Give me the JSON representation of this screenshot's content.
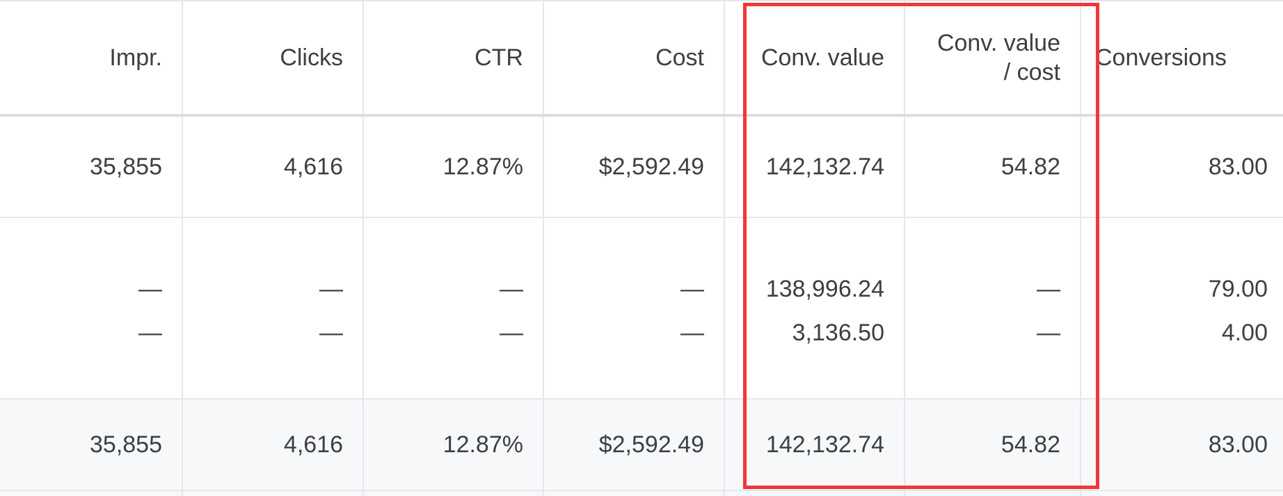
{
  "columns": [
    {
      "id": "impr",
      "label": "Impr."
    },
    {
      "id": "clicks",
      "label": "Clicks"
    },
    {
      "id": "ctr",
      "label": "CTR"
    },
    {
      "id": "cost",
      "label": "Cost"
    },
    {
      "id": "conv_value",
      "label": "Conv. value"
    },
    {
      "id": "conv_value_cost_line1",
      "label": "Conv. value"
    },
    {
      "id": "conv_value_cost_line2",
      "label": "/ cost"
    },
    {
      "id": "conversions",
      "label": "Conversions"
    }
  ],
  "rows": {
    "main": {
      "impr": "35,855",
      "clicks": "4,616",
      "ctr": "12.87%",
      "cost": "$2,592.49",
      "conv_value": "142,132.74",
      "conv_value_cost": "54.82",
      "conversions": "83.00"
    },
    "sub1": {
      "impr": "—",
      "clicks": "—",
      "ctr": "—",
      "cost": "—",
      "conv_value": "138,996.24",
      "conv_value_cost": "—",
      "conversions": "79.00"
    },
    "sub2": {
      "impr": "—",
      "clicks": "—",
      "ctr": "—",
      "cost": "—",
      "conv_value": "3,136.50",
      "conv_value_cost": "—",
      "conversions": "4.00"
    },
    "total": {
      "impr": "35,855",
      "clicks": "4,616",
      "ctr": "12.87%",
      "cost": "$2,592.49",
      "conv_value": "142,132.74",
      "conv_value_cost": "54.82",
      "conversions": "83.00"
    }
  },
  "highlight_color": "#f0373a"
}
